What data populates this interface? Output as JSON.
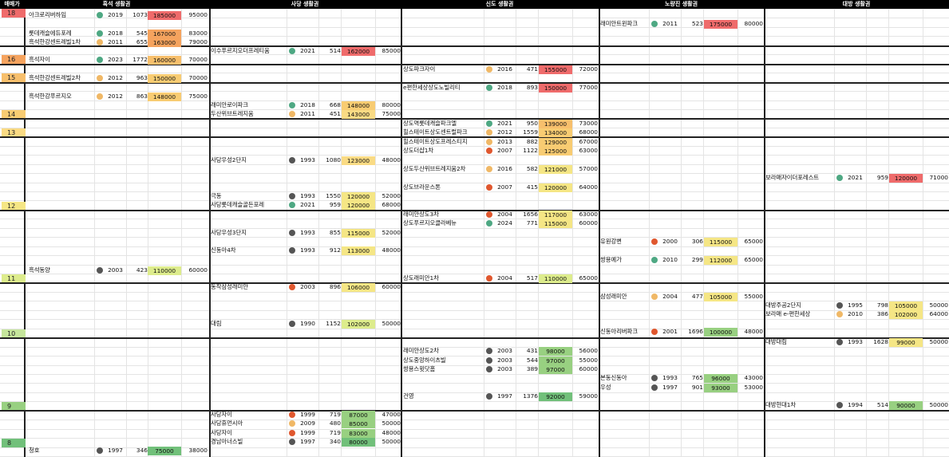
{
  "header": {
    "level_label": "매매가",
    "regions": [
      "흑석 생활권",
      "사당 생활권",
      "신도 생활권",
      "노량진 생활권",
      "대방 생활권"
    ]
  },
  "levels": [
    {
      "label": "18",
      "color": "#ef6b6b"
    },
    {
      "label": "16",
      "color": "#f5a35e"
    },
    {
      "label": "15",
      "color": "#f7bf6c"
    },
    {
      "label": "14",
      "color": "#f8cc72"
    },
    {
      "label": "13",
      "color": "#fadb84"
    },
    {
      "label": "12",
      "color": "#f5e685"
    },
    {
      "label": "11",
      "color": "#ddec8c"
    },
    {
      "label": "10",
      "color": "#c6e69c"
    },
    {
      "label": "9",
      "color": "#98d081"
    },
    {
      "label": "8",
      "color": "#71c07a"
    }
  ],
  "status_colors": {
    "green": "#4ea883",
    "orange": "#f0b866",
    "red": "#e0572e",
    "gray": "#555555"
  },
  "entries": [
    {
      "region": 0,
      "name": "아크로리버하임",
      "status": "green",
      "year": "2019",
      "households": "1073",
      "price": "185000",
      "rent": "95000",
      "price_color": "#ef6b6b"
    },
    {
      "region": 0,
      "name": "롯데캐슬에듀포레",
      "status": "green",
      "year": "2018",
      "households": "545",
      "price": "167000",
      "rent": "83000",
      "price_color": "#f5a35e"
    },
    {
      "region": 0,
      "name": "흑석한강센트레빌1차",
      "status": "orange",
      "year": "2011",
      "households": "655",
      "price": "163000",
      "rent": "79000",
      "price_color": "#f5a35e"
    },
    {
      "region": 0,
      "name": "흑석자이",
      "status": "green",
      "year": "2023",
      "households": "1772",
      "price": "160000",
      "rent": "70000",
      "price_color": "#f7bf6c"
    },
    {
      "region": 0,
      "name": "흑석한강센트레빌2차",
      "status": "orange",
      "year": "2012",
      "households": "963",
      "price": "150000",
      "rent": "70000",
      "price_color": "#f8cc72"
    },
    {
      "region": 0,
      "name": "흑석한강푸르지오",
      "status": "orange",
      "year": "2012",
      "households": "863",
      "price": "148000",
      "rent": "75000",
      "price_color": "#f8cc72"
    },
    {
      "region": 0,
      "name": "흑석동양",
      "status": "gray",
      "year": "2003",
      "households": "423",
      "price": "110000",
      "rent": "60000",
      "price_color": "#ddec8c"
    },
    {
      "region": 0,
      "name": "청호",
      "status": "gray",
      "year": "1997",
      "households": "346",
      "price": "75000",
      "rent": "38000",
      "price_color": "#71c07a"
    },
    {
      "region": 1,
      "name": "이수푸르지오더프레티움",
      "status": "green",
      "year": "2021",
      "households": "514",
      "price": "162000",
      "rent": "85000",
      "price_color": "#ef6b6b"
    },
    {
      "region": 1,
      "name": "래미안로이파크",
      "status": "green",
      "year": "2018",
      "households": "668",
      "price": "148000",
      "rent": "80000",
      "price_color": "#f8cc72"
    },
    {
      "region": 1,
      "name": "두산위브트레지움",
      "status": "orange",
      "year": "2011",
      "households": "451",
      "price": "143000",
      "rent": "75000",
      "price_color": "#fadb84"
    },
    {
      "region": 1,
      "name": "사당우성2단지",
      "status": "gray",
      "year": "1993",
      "households": "1080",
      "price": "123000",
      "rent": "48000",
      "price_color": "#fadb84"
    },
    {
      "region": 1,
      "name": "극동",
      "status": "gray",
      "year": "1993",
      "households": "1550",
      "price": "120000",
      "rent": "52000",
      "price_color": "#f5e685"
    },
    {
      "region": 1,
      "name": "사당롯데캐슬골든포레",
      "status": "green",
      "year": "2021",
      "households": "959",
      "price": "120000",
      "rent": "68000",
      "price_color": "#f5e685"
    },
    {
      "region": 1,
      "name": "사당우성3단지",
      "status": "gray",
      "year": "1993",
      "households": "855",
      "price": "115000",
      "rent": "52000",
      "price_color": "#f5e685"
    },
    {
      "region": 1,
      "name": "신동아4차",
      "status": "gray",
      "year": "1993",
      "households": "912",
      "price": "113000",
      "rent": "48000",
      "price_color": "#f5e685"
    },
    {
      "region": 1,
      "name": "동작삼성래미안",
      "status": "red",
      "year": "2003",
      "households": "896",
      "price": "106000",
      "rent": "60000",
      "price_color": "#f5e685"
    },
    {
      "region": 1,
      "name": "대림",
      "status": "gray",
      "year": "1990",
      "households": "1152",
      "price": "102000",
      "rent": "50000",
      "price_color": "#ddec8c"
    },
    {
      "region": 1,
      "name": "사당자이",
      "status": "red",
      "year": "1999",
      "households": "719",
      "price": "87000",
      "rent": "47000",
      "price_color": "#98d081"
    },
    {
      "region": 1,
      "name": "사당휴먼시아",
      "status": "orange",
      "year": "2009",
      "households": "480",
      "price": "85000",
      "rent": "50000",
      "price_color": "#98d081"
    },
    {
      "region": 1,
      "name": "사당자이",
      "status": "red",
      "year": "1999",
      "households": "719",
      "price": "83000",
      "rent": "48000",
      "price_color": "#98d081"
    },
    {
      "region": 1,
      "name": "경남아너스빌",
      "status": "gray",
      "year": "1997",
      "households": "340",
      "price": "80000",
      "rent": "50000",
      "price_color": "#71c07a"
    },
    {
      "region": 2,
      "name": "상도파크자이",
      "status": "orange",
      "year": "2016",
      "households": "471",
      "price": "155000",
      "rent": "72000",
      "price_color": "#ef6b6b"
    },
    {
      "region": 2,
      "name": "e편한세상상도노빌리티",
      "status": "green",
      "year": "2018",
      "households": "893",
      "price": "150000",
      "rent": "77000",
      "price_color": "#ef6b6b"
    },
    {
      "region": 2,
      "name": "상도역롯데캐슬파크엘",
      "status": "green",
      "year": "2021",
      "households": "950",
      "price": "139000",
      "rent": "73000",
      "price_color": "#f7bf6c"
    },
    {
      "region": 2,
      "name": "힐스테이트상도센트럴파크",
      "status": "orange",
      "year": "2012",
      "households": "1559",
      "price": "134000",
      "rent": "68000",
      "price_color": "#f8cc72"
    },
    {
      "region": 2,
      "name": "힐스테이트상도프레스티지",
      "status": "orange",
      "year": "2013",
      "households": "882",
      "price": "129000",
      "rent": "67000",
      "price_color": "#f8cc72"
    },
    {
      "region": 2,
      "name": "상도더샵1차",
      "status": "red",
      "year": "2007",
      "households": "1122",
      "price": "125000",
      "rent": "63000",
      "price_color": "#f8cc72"
    },
    {
      "region": 2,
      "name": "상도두산위브트레지움2차",
      "status": "orange",
      "year": "2016",
      "households": "582",
      "price": "121000",
      "rent": "57000",
      "price_color": "#f5e685"
    },
    {
      "region": 2,
      "name": "상도브라운스톤",
      "status": "red",
      "year": "2007",
      "households": "415",
      "price": "120000",
      "rent": "64000",
      "price_color": "#f5e685"
    },
    {
      "region": 2,
      "name": "래미안상도3차",
      "status": "red",
      "year": "2004",
      "households": "1656",
      "price": "117000",
      "rent": "63000",
      "price_color": "#f5e685"
    },
    {
      "region": 2,
      "name": "상도푸르지오클라베뉴",
      "status": "green",
      "year": "2024",
      "households": "771",
      "price": "115000",
      "rent": "60000",
      "price_color": "#f5e685"
    },
    {
      "region": 2,
      "name": "상도래미안1차",
      "status": "red",
      "year": "2004",
      "households": "517",
      "price": "110000",
      "rent": "65000",
      "price_color": "#ddec8c"
    },
    {
      "region": 2,
      "name": "래미안상도2차",
      "status": "gray",
      "year": "2003",
      "households": "431",
      "price": "98000",
      "rent": "56000",
      "price_color": "#98d081"
    },
    {
      "region": 2,
      "name": "상도중앙하이츠빌",
      "status": "gray",
      "year": "2003",
      "households": "544",
      "price": "97000",
      "rent": "55000",
      "price_color": "#98d081"
    },
    {
      "region": 2,
      "name": "쌍용스윗닷홈",
      "status": "gray",
      "year": "2003",
      "households": "389",
      "price": "97000",
      "rent": "60000",
      "price_color": "#98d081"
    },
    {
      "region": 2,
      "name": "건영",
      "status": "gray",
      "year": "1997",
      "households": "1376",
      "price": "92000",
      "rent": "59000",
      "price_color": "#71c07a"
    },
    {
      "region": 3,
      "name": "래미안트윈파크",
      "status": "green",
      "year": "2011",
      "households": "523",
      "price": "175000",
      "rent": "80000",
      "price_color": "#ef6b6b"
    },
    {
      "region": 3,
      "name": "유원강변",
      "status": "red",
      "year": "2000",
      "households": "306",
      "price": "115000",
      "rent": "65000",
      "price_color": "#f5e685"
    },
    {
      "region": 3,
      "name": "쌍용예가",
      "status": "green",
      "year": "2010",
      "households": "299",
      "price": "112000",
      "rent": "65000",
      "price_color": "#f5e685"
    },
    {
      "region": 3,
      "name": "삼성래미안",
      "status": "orange",
      "year": "2004",
      "households": "477",
      "price": "105000",
      "rent": "55000",
      "price_color": "#f5e685"
    },
    {
      "region": 3,
      "name": "신동아리버파크",
      "status": "red",
      "year": "2001",
      "households": "1696",
      "price": "100000",
      "rent": "48000",
      "price_color": "#98d081"
    },
    {
      "region": 3,
      "name": "본동신동아",
      "status": "gray",
      "year": "1993",
      "households": "765",
      "price": "96000",
      "rent": "43000",
      "price_color": "#98d081"
    },
    {
      "region": 3,
      "name": "우성",
      "status": "gray",
      "year": "1997",
      "households": "901",
      "price": "93000",
      "rent": "53000",
      "price_color": "#98d081"
    },
    {
      "region": 4,
      "name": "보라매자이더포레스트",
      "status": "green",
      "year": "2021",
      "households": "959",
      "price": "120000",
      "rent": "71000",
      "price_color": "#ef6b6b"
    },
    {
      "region": 4,
      "name": "대방주공2단지",
      "status": "gray",
      "year": "1995",
      "households": "798",
      "price": "105000",
      "rent": "50000",
      "price_color": "#f5e685"
    },
    {
      "region": 4,
      "name": "보라매 e-편한세상",
      "status": "orange",
      "year": "2010",
      "households": "386",
      "price": "102000",
      "rent": "64000",
      "price_color": "#f5e685"
    },
    {
      "region": 4,
      "name": "대방대림",
      "status": "gray",
      "year": "1993",
      "households": "1628",
      "price": "99000",
      "rent": "50000",
      "price_color": "#f5e685"
    },
    {
      "region": 4,
      "name": "대방현대1차",
      "status": "gray",
      "year": "1994",
      "households": "514",
      "price": "90000",
      "rent": "50000",
      "price_color": "#98d081"
    }
  ]
}
